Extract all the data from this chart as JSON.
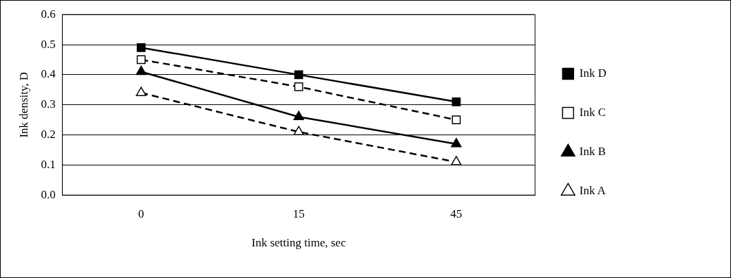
{
  "chart_data": {
    "type": "line",
    "xlabel": "Ink setting time, sec",
    "ylabel": "Ink density, D",
    "categories": [
      "0",
      "15",
      "45"
    ],
    "series": [
      {
        "name": "Ink D",
        "color": "#000000",
        "marker": "square",
        "line_style": "solid",
        "values": [
          0.49,
          0.4,
          0.31
        ]
      },
      {
        "name": "Ink C",
        "color": "#000000",
        "marker": "square",
        "line_style": "dashed",
        "values": [
          0.45,
          0.36,
          0.25
        ]
      },
      {
        "name": "Ink B",
        "color": "#000000",
        "marker": "triangle",
        "line_style": "solid",
        "values": [
          0.41,
          0.26,
          0.17
        ]
      },
      {
        "name": "Ink A",
        "color": "#000000",
        "marker": "triangle",
        "line_style": "dashed",
        "values": [
          0.34,
          0.21,
          0.11
        ]
      }
    ],
    "ylim": [
      0,
      0.6
    ],
    "yticks": [
      {
        "value": 0,
        "label": "0.0"
      },
      {
        "value": 0.1,
        "label": "0.1"
      },
      {
        "value": 0.2,
        "label": "0.2"
      },
      {
        "value": 0.3,
        "label": "0.3"
      },
      {
        "value": 0.4,
        "label": "0.4"
      },
      {
        "value": 0.5,
        "label": "0.5"
      },
      {
        "value": 0.6,
        "label": "0.6"
      }
    ],
    "grid": "y",
    "legend": "right"
  }
}
